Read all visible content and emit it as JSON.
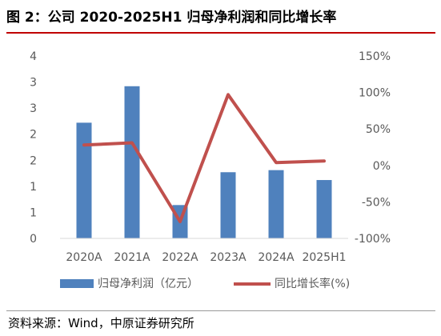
{
  "figure_title": "图 2：公司 2020-2025H1 归母净利润和同比增长率",
  "source": "资料来源：Wind，中原证券研究所",
  "colors": {
    "bar": "#4f81bd",
    "line": "#c0504d",
    "title_rule": "#c00000"
  },
  "chart_data": {
    "type": "bar",
    "categories": [
      "2020A",
      "2021A",
      "2022A",
      "2023A",
      "2024A",
      "2025H1"
    ],
    "y_left_ticks": [
      "0",
      "1",
      "1",
      "2",
      "2",
      "3",
      "3",
      "4"
    ],
    "y_right_ticks": [
      "-100%",
      "-50%",
      "0%",
      "50%",
      "100%",
      "150%"
    ],
    "ylim_left": [
      0,
      3.5
    ],
    "ylim_right": [
      -100,
      150
    ],
    "series": [
      {
        "name": "归母净利润（亿元）",
        "type": "bar",
        "axis": "left",
        "values": [
          2.22,
          2.92,
          0.64,
          1.27,
          1.31,
          1.12
        ]
      },
      {
        "name": "同比增长率(%)",
        "type": "line",
        "axis": "right",
        "values": [
          28,
          31,
          -77,
          97,
          4,
          6
        ]
      }
    ],
    "legend_position": "bottom",
    "grid": false
  }
}
